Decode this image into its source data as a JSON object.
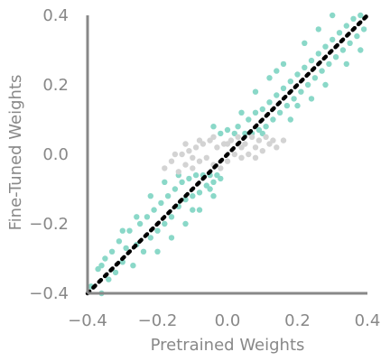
{
  "chart_data": {
    "type": "scatter",
    "title": "",
    "xlabel": "Pretrained Weights",
    "ylabel": "Fine-Tuned Weights",
    "xlim": [
      -0.4,
      0.4
    ],
    "ylim": [
      -0.4,
      0.4
    ],
    "xticks": [
      -0.4,
      -0.2,
      0.0,
      0.2,
      0.4
    ],
    "yticks": [
      -0.4,
      -0.2,
      0.0,
      0.2,
      0.4
    ],
    "xtick_labels": [
      "−0.4",
      "−0.2",
      "0.0",
      "0.2",
      "0.4"
    ],
    "ytick_labels": [
      "−0.4",
      "−0.2",
      "0.0",
      "0.2",
      "0.4"
    ],
    "grid": false,
    "legend": "none",
    "reference_line": {
      "style": "dotted",
      "color": "#000000",
      "from": [
        -0.4,
        -0.4
      ],
      "to": [
        0.4,
        0.4
      ]
    },
    "colors": {
      "series_a": "#8ad8c8",
      "series_b": "#d3d3d3",
      "axis": "#888888"
    },
    "series": [
      {
        "color": "#8ad8c8",
        "points": [
          [
            -0.39,
            -0.38
          ],
          [
            -0.37,
            -0.33
          ],
          [
            -0.36,
            -0.4
          ],
          [
            -0.35,
            -0.3
          ],
          [
            -0.34,
            -0.36
          ],
          [
            -0.33,
            -0.28
          ],
          [
            -0.32,
            -0.34
          ],
          [
            -0.31,
            -0.25
          ],
          [
            -0.3,
            -0.31
          ],
          [
            -0.29,
            -0.27
          ],
          [
            -0.28,
            -0.22
          ],
          [
            -0.27,
            -0.32
          ],
          [
            -0.26,
            -0.26
          ],
          [
            -0.25,
            -0.2
          ],
          [
            -0.24,
            -0.28
          ],
          [
            -0.23,
            -0.18
          ],
          [
            -0.22,
            -0.24
          ],
          [
            -0.21,
            -0.16
          ],
          [
            -0.2,
            -0.22
          ],
          [
            -0.19,
            -0.14
          ],
          [
            -0.18,
            -0.2
          ],
          [
            -0.17,
            -0.12
          ],
          [
            -0.16,
            -0.18
          ],
          [
            -0.15,
            -0.1
          ],
          [
            -0.14,
            -0.15
          ],
          [
            -0.13,
            -0.08
          ],
          [
            -0.12,
            -0.13
          ],
          [
            -0.11,
            -0.07
          ],
          [
            -0.1,
            -0.12
          ],
          [
            -0.09,
            -0.06
          ],
          [
            -0.08,
            -0.11
          ],
          [
            -0.07,
            -0.06
          ],
          [
            -0.06,
            -0.09
          ],
          [
            -0.05,
            -0.06
          ],
          [
            -0.04,
            -0.08
          ],
          [
            -0.03,
            -0.06
          ],
          [
            -0.02,
            -0.07
          ],
          [
            -0.14,
            -0.06
          ],
          [
            -0.18,
            -0.08
          ],
          [
            -0.22,
            -0.12
          ],
          [
            -0.26,
            -0.18
          ],
          [
            -0.1,
            -0.16
          ],
          [
            -0.05,
            -0.1
          ],
          [
            -0.3,
            -0.22
          ],
          [
            -0.36,
            -0.32
          ],
          [
            -0.2,
            -0.28
          ],
          [
            -0.12,
            -0.2
          ],
          [
            -0.08,
            -0.16
          ],
          [
            -0.04,
            -0.12
          ],
          [
            -0.16,
            -0.24
          ],
          [
            0.02,
            0.06
          ],
          [
            0.03,
            0.08
          ],
          [
            0.05,
            0.06
          ],
          [
            0.06,
            0.1
          ],
          [
            0.07,
            0.06
          ],
          [
            0.08,
            0.12
          ],
          [
            0.09,
            0.07
          ],
          [
            0.1,
            0.13
          ],
          [
            0.11,
            0.08
          ],
          [
            0.12,
            0.15
          ],
          [
            0.13,
            0.1
          ],
          [
            0.14,
            0.17
          ],
          [
            0.15,
            0.12
          ],
          [
            0.16,
            0.19
          ],
          [
            0.17,
            0.14
          ],
          [
            0.18,
            0.21
          ],
          [
            0.19,
            0.16
          ],
          [
            0.2,
            0.23
          ],
          [
            0.21,
            0.18
          ],
          [
            0.22,
            0.25
          ],
          [
            0.23,
            0.2
          ],
          [
            0.24,
            0.27
          ],
          [
            0.25,
            0.22
          ],
          [
            0.26,
            0.29
          ],
          [
            0.27,
            0.24
          ],
          [
            0.28,
            0.31
          ],
          [
            0.29,
            0.26
          ],
          [
            0.3,
            0.33
          ],
          [
            0.31,
            0.28
          ],
          [
            0.32,
            0.35
          ],
          [
            0.33,
            0.3
          ],
          [
            0.34,
            0.37
          ],
          [
            0.35,
            0.32
          ],
          [
            0.36,
            0.39
          ],
          [
            0.37,
            0.34
          ],
          [
            0.38,
            0.4
          ],
          [
            0.39,
            0.36
          ],
          [
            0.04,
            0.12
          ],
          [
            0.08,
            0.18
          ],
          [
            0.12,
            0.22
          ],
          [
            0.16,
            0.26
          ],
          [
            0.22,
            0.32
          ],
          [
            0.26,
            0.36
          ],
          [
            0.3,
            0.4
          ],
          [
            0.1,
            0.06
          ],
          [
            0.18,
            0.1
          ],
          [
            0.24,
            0.16
          ],
          [
            0.28,
            0.2
          ],
          [
            0.34,
            0.26
          ],
          [
            0.38,
            0.3
          ],
          [
            -0.02,
            0.06
          ],
          [
            0.0,
            0.07
          ],
          [
            -0.04,
            0.08
          ],
          [
            0.14,
            0.24
          ],
          [
            0.2,
            0.14
          ]
        ]
      },
      {
        "color": "#d3d3d3",
        "points": [
          [
            -0.18,
            -0.04
          ],
          [
            -0.16,
            -0.02
          ],
          [
            -0.14,
            -0.05
          ],
          [
            -0.13,
            0.0
          ],
          [
            -0.12,
            -0.03
          ],
          [
            -0.11,
            0.01
          ],
          [
            -0.1,
            -0.04
          ],
          [
            -0.09,
            0.02
          ],
          [
            -0.08,
            -0.02
          ],
          [
            -0.07,
            0.03
          ],
          [
            -0.06,
            -0.01
          ],
          [
            -0.05,
            0.04
          ],
          [
            -0.04,
            -0.03
          ],
          [
            -0.03,
            0.02
          ],
          [
            -0.02,
            -0.04
          ],
          [
            -0.01,
            0.03
          ],
          [
            0.0,
            -0.02
          ],
          [
            0.01,
            0.04
          ],
          [
            0.02,
            0.0
          ],
          [
            0.03,
            0.05
          ],
          [
            0.04,
            -0.01
          ],
          [
            0.05,
            0.03
          ],
          [
            0.06,
            0.0
          ],
          [
            0.07,
            0.05
          ],
          [
            0.08,
            0.02
          ],
          [
            0.09,
            0.04
          ],
          [
            0.1,
            0.01
          ],
          [
            0.11,
            0.05
          ],
          [
            0.12,
            0.03
          ],
          [
            0.13,
            0.04
          ],
          [
            0.14,
            0.02
          ],
          [
            0.16,
            0.04
          ],
          [
            -0.15,
            0.0
          ],
          [
            -0.12,
            0.03
          ],
          [
            -0.08,
            0.04
          ],
          [
            -0.04,
            0.05
          ],
          [
            0.0,
            0.03
          ],
          [
            0.04,
            0.02
          ],
          [
            0.08,
            -0.01
          ],
          [
            -0.1,
            -0.01
          ]
        ]
      }
    ]
  }
}
